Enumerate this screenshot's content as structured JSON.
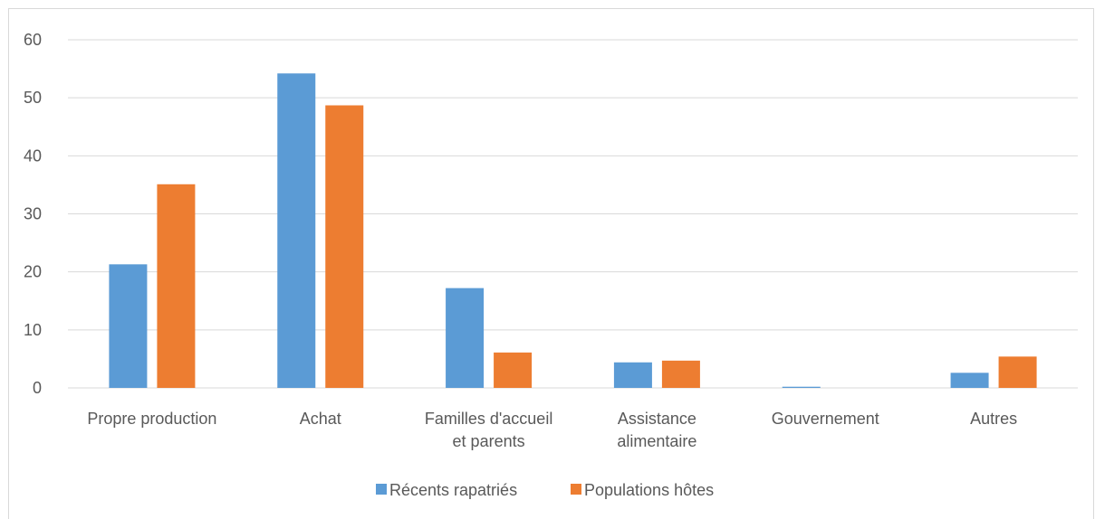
{
  "chart_data": {
    "type": "bar",
    "title": "",
    "xlabel": "",
    "ylabel": "",
    "ylim": [
      0,
      60
    ],
    "yticks": [
      0,
      10,
      20,
      30,
      40,
      50,
      60
    ],
    "grid": true,
    "legend_position": "bottom",
    "categories": [
      [
        "Propre production"
      ],
      [
        "Achat"
      ],
      [
        "Familles d'accueil",
        "et parents"
      ],
      [
        "Assistance",
        "alimentaire"
      ],
      [
        "Gouvernement"
      ],
      [
        "Autres"
      ]
    ],
    "series": [
      {
        "name": "Récents rapatriés",
        "color": "#5b9bd5",
        "values": [
          21.3,
          54.2,
          17.2,
          4.4,
          0.2,
          2.6
        ]
      },
      {
        "name": "Populations hôtes",
        "color": "#ed7d31",
        "values": [
          35.1,
          48.7,
          6.1,
          4.7,
          0,
          5.4
        ]
      }
    ]
  }
}
